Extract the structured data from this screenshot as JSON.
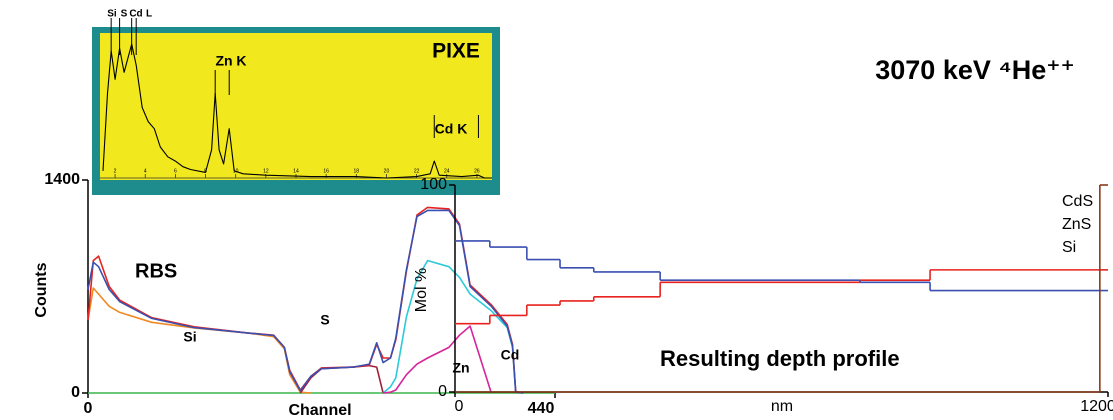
{
  "chart_data": [
    {
      "type": "line",
      "annotations": [
        "RBS",
        "Si",
        "S",
        "Zn",
        "Cd"
      ],
      "xlabel": "Channel",
      "ylabel": "Counts",
      "x": [
        0,
        5,
        10,
        20,
        30,
        60,
        100,
        150,
        175,
        185,
        190,
        200,
        210,
        220,
        250,
        265,
        272,
        278,
        285,
        290,
        300,
        310,
        320,
        340,
        350,
        360,
        380,
        395,
        400,
        403,
        410,
        440
      ],
      "xlim": [
        0,
        440
      ],
      "xticks": [
        0,
        440
      ],
      "ylim": [
        0,
        1400
      ],
      "yticks": [
        0,
        1400
      ],
      "series": [
        {
          "color": "#3cb54a",
          "values": [
            0,
            0,
            0,
            0,
            0,
            0,
            0,
            0,
            0,
            0,
            0,
            0,
            0,
            0,
            0,
            0,
            0,
            0,
            0,
            0,
            0,
            0,
            0,
            0,
            0,
            0,
            0,
            0,
            0,
            0,
            0,
            0
          ]
        },
        {
          "color": "#f08a24",
          "values": [
            480,
            690,
            650,
            570,
            530,
            465,
            428,
            395,
            370,
            290,
            120,
            5,
            0,
            null,
            null,
            null,
            null,
            null,
            null,
            null,
            null,
            null,
            null,
            null,
            null,
            null,
            null,
            null,
            null,
            null,
            null,
            null
          ]
        },
        {
          "color": "#a0203a",
          "values": [
            null,
            null,
            null,
            null,
            null,
            null,
            null,
            null,
            null,
            null,
            null,
            0,
            100,
            160,
            170,
            180,
            170,
            0,
            null,
            null,
            null,
            null,
            null,
            null,
            null,
            null,
            null,
            null,
            null,
            null,
            null,
            null
          ]
        },
        {
          "color": "#2ec9d9",
          "values": [
            null,
            null,
            null,
            null,
            null,
            null,
            null,
            null,
            null,
            null,
            null,
            null,
            null,
            null,
            null,
            null,
            null,
            0,
            40,
            100,
            500,
            750,
            870,
            830,
            760,
            650,
            540,
            430,
            300,
            0,
            null,
            null
          ]
        },
        {
          "color": "#d6249c",
          "values": [
            null,
            null,
            null,
            null,
            null,
            null,
            null,
            null,
            null,
            null,
            null,
            null,
            null,
            null,
            null,
            null,
            null,
            0,
            5,
            20,
            120,
            190,
            230,
            300,
            380,
            440,
            0,
            null,
            null,
            null,
            null,
            null
          ]
        },
        {
          "color": "#e8231f",
          "values": [
            480,
            870,
            900,
            700,
            610,
            495,
            435,
            395,
            380,
            300,
            150,
            20,
            110,
            165,
            170,
            185,
            320,
            230,
            230,
            350,
            800,
            1170,
            1220,
            1210,
            1110,
            710,
            580,
            450,
            320,
            10,
            0,
            null
          ]
        },
        {
          "color": "#3a4fb0",
          "values": [
            680,
            860,
            830,
            680,
            600,
            490,
            430,
            395,
            378,
            300,
            140,
            15,
            110,
            160,
            170,
            190,
            330,
            200,
            230,
            360,
            810,
            1160,
            1200,
            1200,
            1100,
            700,
            570,
            440,
            310,
            5,
            0,
            null
          ]
        }
      ]
    },
    {
      "type": "line",
      "title": "PIXE",
      "annotations": [
        "Si",
        "S",
        "Cd",
        "L",
        "Zn K",
        "Cd K"
      ],
      "background": "#f2e81e",
      "border": "#1e8c8c",
      "x": [
        1.2,
        1.5,
        1.74,
        2.0,
        2.3,
        2.6,
        3.1,
        3.4,
        3.8,
        4.2,
        4.6,
        5.0,
        5.5,
        6.0,
        6.5,
        7.0,
        8.0,
        8.4,
        8.64,
        8.9,
        9.2,
        9.57,
        9.9,
        10.5,
        12,
        15,
        18,
        20,
        22,
        22.9,
        23.17,
        23.5,
        25,
        26.1,
        26.5,
        27
      ],
      "xlim": [
        1,
        27
      ],
      "xticks": [
        2,
        4,
        6,
        8,
        10,
        12,
        14,
        16,
        18,
        20,
        22,
        24,
        26
      ],
      "ylim": [
        0,
        100
      ],
      "markers": [
        1.74,
        2.3,
        3.1,
        3.4,
        8.64,
        9.57,
        23.17,
        26.1
      ],
      "series": [
        {
          "color": "#000000",
          "values": [
            5,
            60,
            90,
            70,
            92,
            75,
            95,
            80,
            50,
            40,
            35,
            22,
            15,
            12,
            8,
            6,
            4,
            20,
            60,
            20,
            10,
            35,
            5,
            3,
            2,
            1,
            1,
            0,
            1,
            3,
            12,
            2,
            1,
            2,
            0,
            0
          ]
        }
      ]
    },
    {
      "type": "step",
      "title": "3070 keV ⁴He⁺⁺",
      "annotations": [
        "Resulting depth profile"
      ],
      "xlabel": "nm",
      "ylabel": "Mol %",
      "x": [
        0,
        64,
        132,
        193,
        255,
        377,
        744,
        873,
        1185
      ],
      "xlim": [
        0,
        1200
      ],
      "xticks": [
        0,
        1200
      ],
      "ylim": [
        0,
        100
      ],
      "yticks": [
        0,
        100
      ],
      "legend": "right",
      "series": [
        {
          "name": "CdS",
          "color": "#e8231f",
          "values": [
            33,
            37,
            42,
            44,
            46,
            53,
            54,
            59,
            59
          ]
        },
        {
          "name": "ZnS",
          "color": "#3a4fb0",
          "values": [
            73,
            70,
            64,
            60,
            58,
            54,
            53,
            49,
            49
          ]
        },
        {
          "name": "Si",
          "color": "#8b3a1a",
          "values": [
            0,
            0,
            0,
            0,
            0,
            0,
            0,
            0,
            100
          ]
        }
      ]
    }
  ]
}
